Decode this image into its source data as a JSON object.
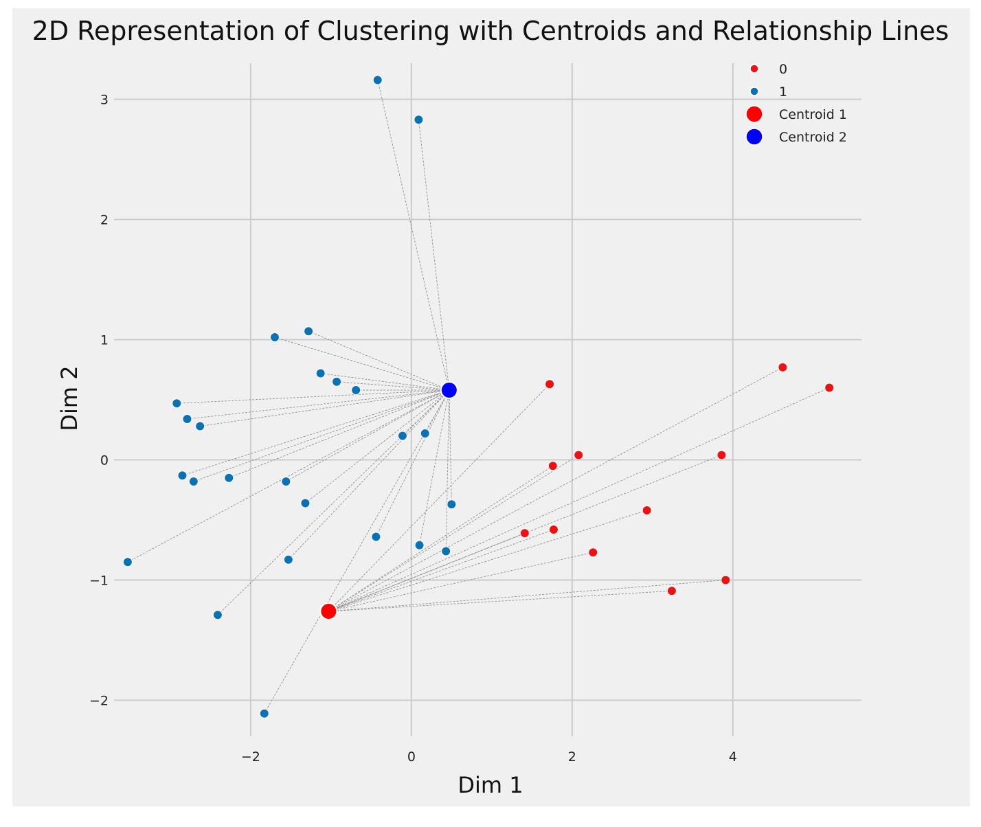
{
  "chart_data": {
    "type": "scatter",
    "title": "2D Representation of Clustering with Centroids and Relationship Lines",
    "xlabel": "Dim 1",
    "ylabel": "Dim 2",
    "xlim": [
      -3.7,
      5.6
    ],
    "ylim": [
      -2.3,
      3.3
    ],
    "xticks": [
      -2,
      0,
      2,
      4
    ],
    "yticks": [
      -2,
      -1,
      0,
      1,
      2,
      3
    ],
    "xtick_labels": [
      "−2",
      "0",
      "2",
      "4"
    ],
    "ytick_labels": [
      "−2",
      "−1",
      "0",
      "1",
      "2",
      "3"
    ],
    "grid": true,
    "legend_position": "top-right",
    "colors": {
      "0": "#ee1111",
      "1": "#0a72b4",
      "centroid_1": "#ff0000",
      "centroid_2": "#0000ff"
    },
    "series": [
      {
        "name": "0",
        "points": [
          [
            1.72,
            0.63
          ],
          [
            1.76,
            -0.05
          ],
          [
            2.08,
            0.04
          ],
          [
            1.41,
            -0.61
          ],
          [
            1.77,
            -0.58
          ],
          [
            2.26,
            -0.77
          ],
          [
            2.93,
            -0.42
          ],
          [
            3.86,
            0.04
          ],
          [
            3.91,
            -1.0
          ],
          [
            3.24,
            -1.09
          ],
          [
            4.62,
            0.77
          ],
          [
            5.2,
            0.6
          ]
        ]
      },
      {
        "name": "1",
        "points": [
          [
            -0.42,
            3.16
          ],
          [
            0.09,
            2.83
          ],
          [
            -1.28,
            1.07
          ],
          [
            -1.7,
            1.02
          ],
          [
            -1.13,
            0.72
          ],
          [
            -0.93,
            0.65
          ],
          [
            -0.69,
            0.58
          ],
          [
            -2.92,
            0.47
          ],
          [
            -2.79,
            0.34
          ],
          [
            -2.63,
            0.28
          ],
          [
            -0.11,
            0.2
          ],
          [
            0.17,
            0.22
          ],
          [
            -2.85,
            -0.13
          ],
          [
            -2.71,
            -0.18
          ],
          [
            -2.27,
            -0.15
          ],
          [
            -1.56,
            -0.18
          ],
          [
            -1.32,
            -0.36
          ],
          [
            0.5,
            -0.37
          ],
          [
            -0.44,
            -0.64
          ],
          [
            0.1,
            -0.71
          ],
          [
            0.43,
            -0.76
          ],
          [
            -1.53,
            -0.83
          ],
          [
            -3.53,
            -0.85
          ],
          [
            -2.41,
            -1.29
          ],
          [
            -1.83,
            -2.11
          ]
        ]
      }
    ],
    "centroids": [
      {
        "name": "Centroid 1",
        "x": -1.03,
        "y": -1.26
      },
      {
        "name": "Centroid 2",
        "x": 0.47,
        "y": 0.58
      }
    ],
    "legend": [
      "0",
      "1",
      "Centroid 1",
      "Centroid 2"
    ]
  }
}
